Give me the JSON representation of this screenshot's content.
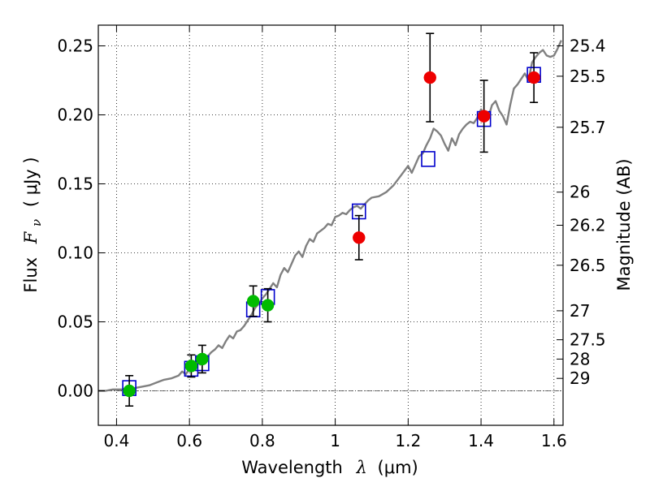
{
  "chart_data": {
    "type": "scatter",
    "xlabel": "Wavelength",
    "xlabel_symbol": "λ",
    "xlabel_unit": "(μm)",
    "ylabel": "Flux",
    "ylabel_symbol": "F",
    "ylabel_subscript": "ν",
    "ylabel_unit": "( μJy )",
    "y2label": "Magnitude (AB)",
    "xlim": [
      0.35,
      1.625
    ],
    "ylim": [
      -0.025,
      0.265
    ],
    "grid": true,
    "x_ticks": [
      {
        "value": 0.4,
        "label": "0.4"
      },
      {
        "value": 0.6,
        "label": "0.6"
      },
      {
        "value": 0.8,
        "label": "0.8"
      },
      {
        "value": 1.0,
        "label": "1"
      },
      {
        "value": 1.2,
        "label": "1.2"
      },
      {
        "value": 1.4,
        "label": "1.4"
      },
      {
        "value": 1.6,
        "label": "1.6"
      }
    ],
    "y_ticks": [
      {
        "value": 0.0,
        "label": "0.00"
      },
      {
        "value": 0.05,
        "label": "0.05"
      },
      {
        "value": 0.1,
        "label": "0.10"
      },
      {
        "value": 0.15,
        "label": "0.15"
      },
      {
        "value": 0.2,
        "label": "0.20"
      },
      {
        "value": 0.25,
        "label": "0.25"
      }
    ],
    "mag_ticks": [
      {
        "value": 0.25,
        "label": "25.4"
      },
      {
        "value": 0.228,
        "label": "25.5"
      },
      {
        "value": 0.191,
        "label": "25.7"
      },
      {
        "value": 0.144,
        "label": "26"
      },
      {
        "value": 0.12,
        "label": "26.2"
      },
      {
        "value": 0.091,
        "label": "26.5"
      },
      {
        "value": 0.058,
        "label": "27"
      },
      {
        "value": 0.037,
        "label": "27.5"
      },
      {
        "value": 0.023,
        "label": "28"
      },
      {
        "value": 0.009,
        "label": "29"
      }
    ],
    "series": [
      {
        "kind": "line",
        "color": "#808080",
        "x": [
          0.35,
          0.37,
          0.39,
          0.41,
          0.43,
          0.45,
          0.47,
          0.49,
          0.51,
          0.53,
          0.55,
          0.57,
          0.58,
          0.59,
          0.6,
          0.61,
          0.62,
          0.63,
          0.64,
          0.65,
          0.66,
          0.67,
          0.68,
          0.69,
          0.7,
          0.71,
          0.72,
          0.73,
          0.74,
          0.75,
          0.76,
          0.77,
          0.78,
          0.79,
          0.8,
          0.81,
          0.82,
          0.83,
          0.84,
          0.85,
          0.86,
          0.87,
          0.88,
          0.89,
          0.9,
          0.91,
          0.92,
          0.93,
          0.94,
          0.95,
          0.96,
          0.97,
          0.98,
          0.99,
          1.0,
          1.01,
          1.02,
          1.03,
          1.04,
          1.05,
          1.06,
          1.07,
          1.08,
          1.09,
          1.1,
          1.12,
          1.14,
          1.16,
          1.18,
          1.2,
          1.21,
          1.22,
          1.23,
          1.24,
          1.25,
          1.26,
          1.27,
          1.28,
          1.29,
          1.3,
          1.31,
          1.32,
          1.33,
          1.34,
          1.35,
          1.36,
          1.37,
          1.38,
          1.39,
          1.4,
          1.41,
          1.42,
          1.43,
          1.44,
          1.45,
          1.46,
          1.47,
          1.48,
          1.49,
          1.5,
          1.51,
          1.52,
          1.53,
          1.54,
          1.55,
          1.56,
          1.57,
          1.58,
          1.59,
          1.6,
          1.61,
          1.62
        ],
        "y": [
          0.0,
          0.0,
          0.001,
          0.001,
          0.001,
          0.002,
          0.003,
          0.004,
          0.006,
          0.008,
          0.009,
          0.011,
          0.014,
          0.012,
          0.016,
          0.018,
          0.021,
          0.019,
          0.024,
          0.025,
          0.028,
          0.03,
          0.033,
          0.031,
          0.036,
          0.04,
          0.038,
          0.043,
          0.044,
          0.047,
          0.051,
          0.055,
          0.06,
          0.063,
          0.067,
          0.07,
          0.074,
          0.078,
          0.075,
          0.084,
          0.089,
          0.086,
          0.092,
          0.098,
          0.101,
          0.097,
          0.105,
          0.11,
          0.108,
          0.114,
          0.116,
          0.118,
          0.121,
          0.12,
          0.126,
          0.127,
          0.129,
          0.128,
          0.131,
          0.133,
          0.134,
          0.132,
          0.135,
          0.138,
          0.14,
          0.141,
          0.144,
          0.149,
          0.156,
          0.163,
          0.158,
          0.164,
          0.17,
          0.172,
          0.178,
          0.183,
          0.19,
          0.188,
          0.185,
          0.179,
          0.174,
          0.183,
          0.178,
          0.186,
          0.19,
          0.193,
          0.195,
          0.194,
          0.198,
          0.204,
          0.199,
          0.198,
          0.207,
          0.21,
          0.203,
          0.199,
          0.193,
          0.207,
          0.219,
          0.222,
          0.226,
          0.23,
          0.225,
          0.238,
          0.242,
          0.245,
          0.247,
          0.243,
          0.242,
          0.243,
          0.248,
          0.254
        ]
      },
      {
        "kind": "squares",
        "color": "#0000cc",
        "x": [
          0.435,
          0.605,
          0.635,
          0.775,
          0.815,
          1.065,
          1.255,
          1.408,
          1.545
        ],
        "y": [
          0.002,
          0.016,
          0.02,
          0.059,
          0.068,
          0.13,
          0.168,
          0.197,
          0.229
        ]
      },
      {
        "kind": "circles",
        "color": "#00bb00",
        "x": [
          0.435,
          0.605,
          0.635,
          0.775,
          0.815
        ],
        "y": [
          0.0,
          0.018,
          0.023,
          0.065,
          0.062
        ],
        "err": [
          0.011,
          0.008,
          0.01,
          0.011,
          0.012
        ]
      },
      {
        "kind": "circles",
        "color": "#ee0000",
        "x": [
          1.065,
          1.26,
          1.408,
          1.545
        ],
        "y": [
          0.111,
          0.227,
          0.199,
          0.227
        ],
        "err": [
          0.016,
          0.032,
          0.026,
          0.018
        ]
      }
    ]
  }
}
